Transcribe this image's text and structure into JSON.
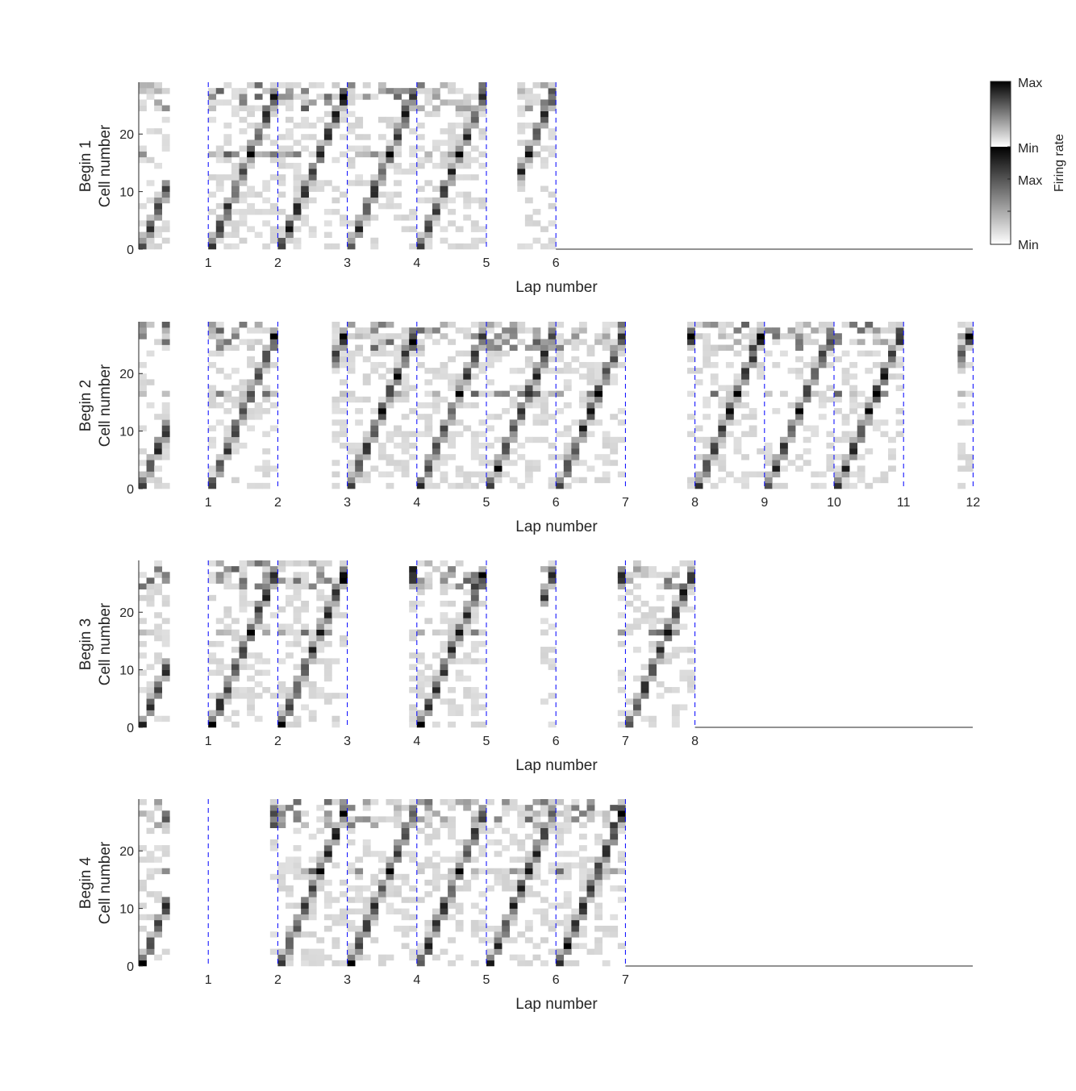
{
  "chart_data": {
    "type": "heatmap",
    "colormap": "grayscale (white = Min, black = Max)",
    "lap_boundary_color": "#0000ff",
    "colorbar": {
      "title": "Firing rate",
      "tick_labels": [
        "Max",
        "Min",
        "Max",
        "Min"
      ]
    },
    "panels": [
      {
        "ylabel_line1": "Begin 1",
        "ylabel_line2": "Cell number",
        "xlabel": "Lap number",
        "y_ticks": [
          0,
          10,
          20
        ],
        "ylim": [
          0,
          29
        ],
        "laps": 6,
        "x_ticks": [
          1,
          2,
          3,
          4,
          5,
          6
        ],
        "x_end": 12,
        "empty_lap_segments": [
          [
            0.35,
            0.95
          ],
          [
            5.0,
            5.4
          ]
        ],
        "seed": 11
      },
      {
        "ylabel_line1": "Begin 2",
        "ylabel_line2": "Cell number",
        "xlabel": "Lap number",
        "y_ticks": [
          0,
          10,
          20
        ],
        "ylim": [
          0,
          29
        ],
        "laps": 12,
        "x_ticks": [
          1,
          2,
          3,
          4,
          5,
          6,
          7,
          8,
          9,
          10,
          11,
          12
        ],
        "x_end": 12,
        "empty_lap_segments": [
          [
            0.35,
            0.95
          ],
          [
            2.0,
            2.75
          ],
          [
            7.0,
            7.8
          ],
          [
            11.0,
            11.7
          ]
        ],
        "seed": 23
      },
      {
        "ylabel_line1": "Begin 3",
        "ylabel_line2": "Cell number",
        "xlabel": "Lap number",
        "y_ticks": [
          0,
          10,
          20
        ],
        "ylim": [
          0,
          29
        ],
        "laps": 8,
        "x_ticks": [
          1,
          2,
          3,
          4,
          5,
          6,
          7,
          8
        ],
        "x_end": 12,
        "empty_lap_segments": [
          [
            0.35,
            0.95
          ],
          [
            3.0,
            3.8
          ],
          [
            5.0,
            5.75
          ],
          [
            6.0,
            6.8
          ]
        ],
        "seed": 37
      },
      {
        "ylabel_line1": "Begin 4",
        "ylabel_line2": "Cell number",
        "xlabel": "Lap number",
        "y_ticks": [
          0,
          10,
          20
        ],
        "ylim": [
          0,
          29
        ],
        "laps": 7,
        "x_ticks": [
          1,
          2,
          3,
          4,
          5,
          6,
          7
        ],
        "x_end": 12,
        "empty_lap_segments": [
          [
            0.35,
            1.85
          ]
        ],
        "seed": 41
      }
    ]
  }
}
